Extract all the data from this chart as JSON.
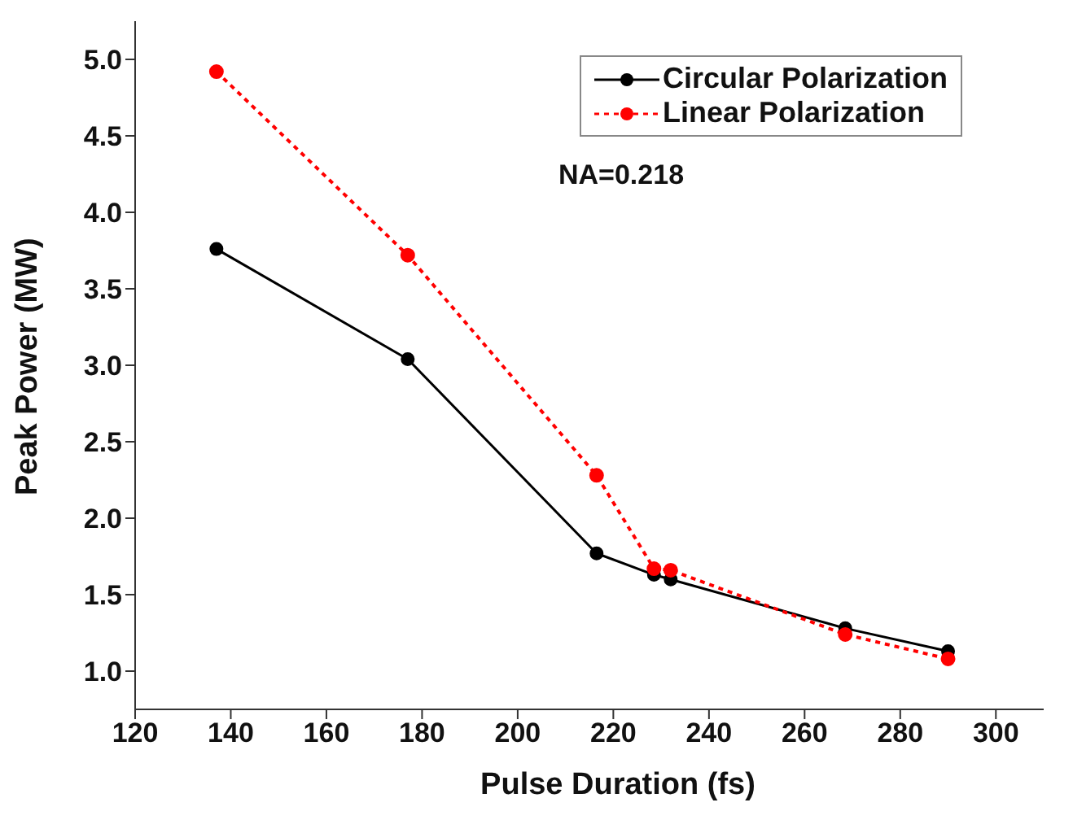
{
  "chart_data": {
    "type": "line",
    "xlabel": "Pulse Duration (fs)",
    "ylabel": "Peak Power (MW)",
    "annotations": [
      "NA=0.218"
    ],
    "x": [
      137,
      177,
      216.5,
      228.5,
      232,
      268.5,
      290
    ],
    "series": [
      {
        "name": "Circular Polarization",
        "color": "#000000",
        "values": [
          3.76,
          3.04,
          1.77,
          1.63,
          1.6,
          1.28,
          1.13
        ],
        "line_style": "solid"
      },
      {
        "name": "Linear Polarization",
        "color": "#ff0000",
        "values": [
          4.92,
          3.72,
          2.28,
          1.67,
          1.66,
          1.24,
          1.08
        ],
        "line_style": "dotted"
      }
    ],
    "xlim": [
      120,
      310
    ],
    "xticks": [
      120,
      140,
      160,
      180,
      200,
      220,
      240,
      260,
      280,
      300
    ],
    "ylim": [
      0.75,
      5.25
    ],
    "yticks": [
      {
        "value": 1,
        "label": "1.0"
      },
      1.5,
      {
        "value": 2,
        "label": "2.0"
      },
      2.5,
      {
        "value": 3,
        "label": "3.0"
      },
      3.5,
      {
        "value": 4,
        "label": "4.0"
      },
      4.5,
      {
        "value": 5,
        "label": "5.0"
      }
    ],
    "grid": false,
    "legend": "top right",
    "marker": "circle"
  }
}
